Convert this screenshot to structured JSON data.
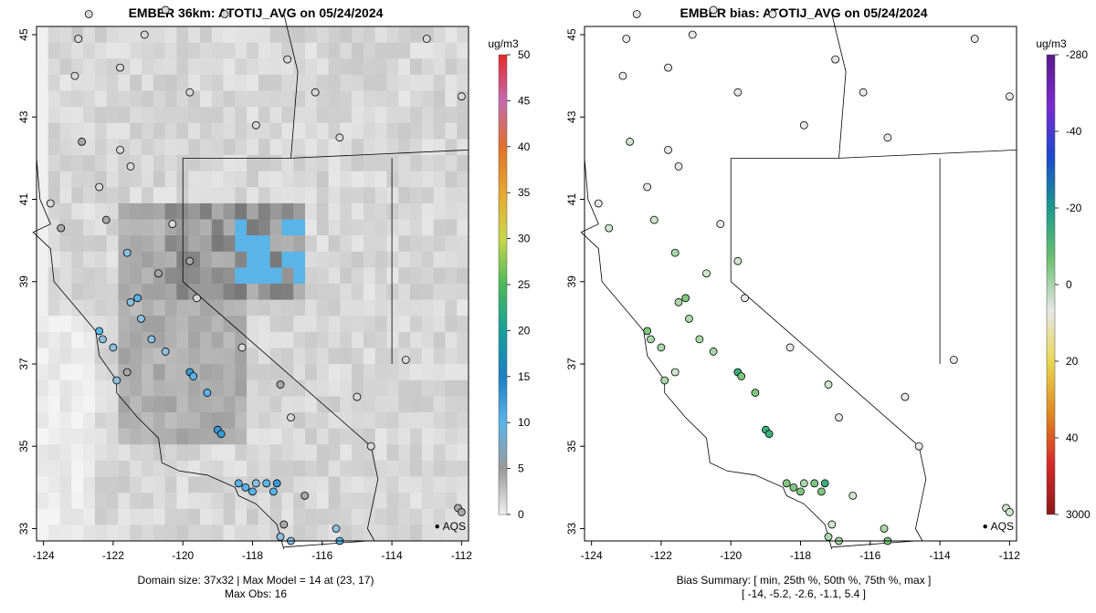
{
  "left": {
    "title": "EMBER 36km: ATOTIJ_AVG on 05/24/2024",
    "caption_line1": "Domain size: 37x32 | Max Model = 14 at (23, 17)",
    "caption_line2": "Max Obs: 16",
    "colorbar_unit": "ug/m3",
    "colorbar_ticks": [
      "0",
      "5",
      "10",
      "15",
      "20",
      "25",
      "30",
      "35",
      "40",
      "45",
      "50"
    ],
    "colorbar_values": [
      0,
      5,
      10,
      15,
      20,
      25,
      30,
      35,
      40,
      45,
      50
    ],
    "colorbar_stops": [
      "#f0f0f0",
      "#9a9a9a",
      "#5ab4e8",
      "#1c7fc4",
      "#16a09a",
      "#4db85a",
      "#c8d84a",
      "#e6a830",
      "#e0702a",
      "#c46ab0",
      "#e62828"
    ],
    "site_label": "AQS"
  },
  "right": {
    "title": "EMBER bias: ATOTIJ_AVG on 05/24/2024",
    "caption_line1": "Bias Summary: [ min, 25th %, 50th %, 75th %, max ]",
    "caption_line2": "[ -14,   -5.2,   -2.6,   -1.1,   5.4 ]",
    "colorbar_unit": "ug/m3",
    "colorbar_ticks": [
      "3000",
      "40",
      "20",
      "0",
      "-20",
      "-40",
      "-280"
    ],
    "colorbar_stops": [
      "#8b1a1a",
      "#d62a2a",
      "#e08a20",
      "#e8d850",
      "#e6e6e6",
      "#6cc070",
      "#1a9a8a",
      "#1a4ad0",
      "#7a2ad0",
      "#5a1a8a"
    ],
    "site_label": "AQS"
  },
  "map": {
    "x_ticks": [
      "-124",
      "-122",
      "-120",
      "-118",
      "-116",
      "-114",
      "-112"
    ],
    "x_values": [
      -124,
      -122,
      -120,
      -118,
      -116,
      -114,
      -112
    ],
    "y_ticks": [
      "33",
      "35",
      "37",
      "39",
      "41",
      "43",
      "45"
    ],
    "y_values": [
      33,
      35,
      37,
      39,
      41,
      43,
      45
    ],
    "xlim": [
      -124.2,
      -111.8
    ],
    "ylim": [
      32.7,
      45.2
    ]
  },
  "chart_data": {
    "type": "map",
    "title": "EMBER 36km: ATOTIJ_AVG on 05/24/2024",
    "units": "ug/m3",
    "max_model": 14,
    "max_model_location": [
      23,
      17
    ],
    "max_obs": 16,
    "domain_size": "37x32",
    "bias_summary": {
      "min": -14,
      "p25": -5.2,
      "p50": -2.6,
      "p75": -1.1,
      "max": 5.4
    }
  }
}
